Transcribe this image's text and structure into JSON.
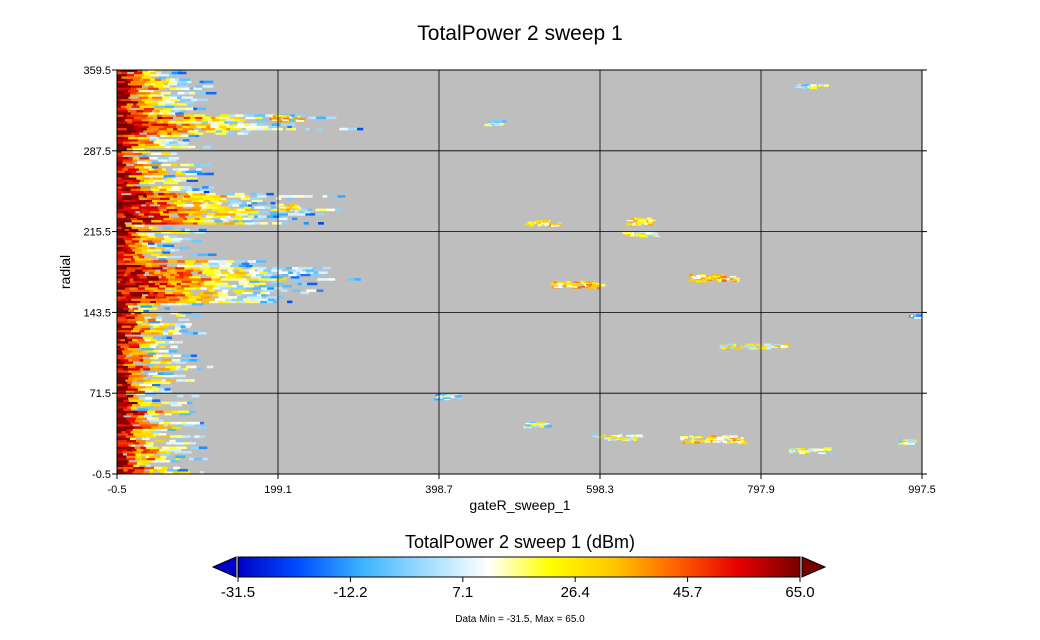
{
  "chart_data": {
    "type": "heatmap",
    "title": "TotalPower 2 sweep 1",
    "xlabel": "gateR_sweep_1",
    "ylabel": "radial",
    "x_ticks": [
      "-0.5",
      "199.1",
      "398.7",
      "598.3",
      "797.9",
      "997.5"
    ],
    "y_ticks": [
      "-0.5",
      "71.5",
      "143.5",
      "215.5",
      "287.5",
      "359.5"
    ],
    "xlim": [
      -0.5,
      997.5
    ],
    "ylim": [
      -0.5,
      359.5
    ],
    "grid": true,
    "background_color": "#bebebe",
    "colorbar": {
      "title": "TotalPower 2 sweep 1 (dBm)",
      "ticks": [
        "-31.5",
        "-12.2",
        "7.1",
        "26.4",
        "45.7",
        "65.0"
      ],
      "range": [
        -31.5,
        65.0
      ],
      "colors": [
        "#0000c8",
        "#0050ff",
        "#3cb4ff",
        "#a0dcff",
        "#ffffff",
        "#ffff00",
        "#ffc800",
        "#ff6400",
        "#e60000",
        "#780000"
      ]
    },
    "summary": "Data Min = -31.5, Max = 65.0",
    "echo_blobs": [
      {
        "x": 210,
        "y": 316,
        "w": 40,
        "h": 6,
        "v": 45
      },
      {
        "x": 470,
        "y": 312,
        "w": 20,
        "h": 4,
        "v": 25
      },
      {
        "x": 210,
        "y": 237,
        "w": 30,
        "h": 5,
        "v": 40
      },
      {
        "x": 530,
        "y": 223,
        "w": 40,
        "h": 5,
        "v": 40
      },
      {
        "x": 650,
        "y": 225,
        "w": 30,
        "h": 6,
        "v": 40
      },
      {
        "x": 650,
        "y": 213,
        "w": 40,
        "h": 4,
        "v": 30
      },
      {
        "x": 570,
        "y": 168,
        "w": 60,
        "h": 6,
        "v": 45
      },
      {
        "x": 740,
        "y": 174,
        "w": 60,
        "h": 6,
        "v": 45
      },
      {
        "x": 790,
        "y": 113,
        "w": 80,
        "h": 4,
        "v": 35
      },
      {
        "x": 410,
        "y": 68,
        "w": 30,
        "h": 4,
        "v": 20
      },
      {
        "x": 520,
        "y": 43,
        "w": 30,
        "h": 4,
        "v": 25
      },
      {
        "x": 620,
        "y": 32,
        "w": 60,
        "h": 4,
        "v": 30
      },
      {
        "x": 740,
        "y": 30,
        "w": 80,
        "h": 6,
        "v": 40
      },
      {
        "x": 860,
        "y": 20,
        "w": 50,
        "h": 4,
        "v": 30
      },
      {
        "x": 860,
        "y": 345,
        "w": 40,
        "h": 3,
        "v": 25
      },
      {
        "x": 990,
        "y": 140,
        "w": 15,
        "h": 3,
        "v": 15
      },
      {
        "x": 980,
        "y": 28,
        "w": 20,
        "h": 4,
        "v": 30
      }
    ]
  }
}
